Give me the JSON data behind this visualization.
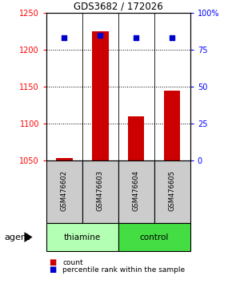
{
  "title": "GDS3682 / 172026",
  "samples": [
    "GSM476602",
    "GSM476603",
    "GSM476604",
    "GSM476605"
  ],
  "counts": [
    1053,
    1225,
    1110,
    1145
  ],
  "percentiles": [
    83,
    85,
    83,
    83
  ],
  "ylim_left": [
    1050,
    1250
  ],
  "ylim_right": [
    0,
    100
  ],
  "yticks_left": [
    1050,
    1100,
    1150,
    1200,
    1250
  ],
  "yticks_right": [
    0,
    25,
    50,
    75,
    100
  ],
  "ytick_labels_right": [
    "0",
    "25",
    "50",
    "75",
    "100%"
  ],
  "bar_color": "#cc0000",
  "dot_color": "#0000cc",
  "bar_base": 1050,
  "groups": [
    {
      "label": "thiamine",
      "samples": [
        0,
        1
      ],
      "color": "#b3ffb3"
    },
    {
      "label": "control",
      "samples": [
        2,
        3
      ],
      "color": "#44dd44"
    }
  ],
  "sample_box_color": "#cccccc",
  "agent_label": "agent",
  "legend_count_label": "count",
  "legend_pct_label": "percentile rank within the sample",
  "dot_size": 25
}
